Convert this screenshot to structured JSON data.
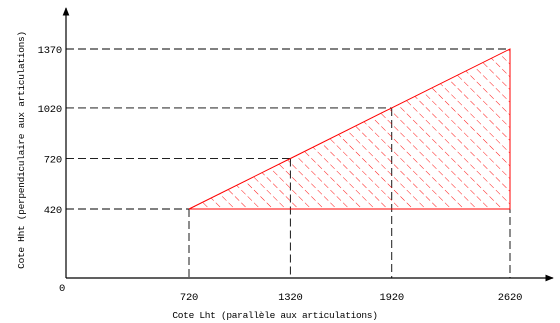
{
  "chart_data": {
    "type": "area",
    "title": "",
    "xlabel": "Cote Lht (parallèle aux articulations)",
    "ylabel": "Cote Hht (perpendiculaire aux articulations)",
    "origin_label": "0",
    "x_ticks": [
      720,
      1320,
      1920,
      2620
    ],
    "y_ticks": [
      420,
      720,
      1020,
      1370
    ],
    "x_tick_labels": [
      "720",
      "1320",
      "1920",
      "2620"
    ],
    "y_tick_labels": [
      "420",
      "720",
      "1020",
      "1370"
    ],
    "xlim": [
      0,
      2800
    ],
    "ylim": [
      0,
      1550
    ],
    "region": {
      "points": [
        [
          720,
          420
        ],
        [
          1320,
          720
        ],
        [
          1920,
          1020
        ],
        [
          2620,
          1370
        ],
        [
          2620,
          420
        ]
      ],
      "fill": "hatched",
      "color": "#ff0000"
    },
    "grid": false
  }
}
